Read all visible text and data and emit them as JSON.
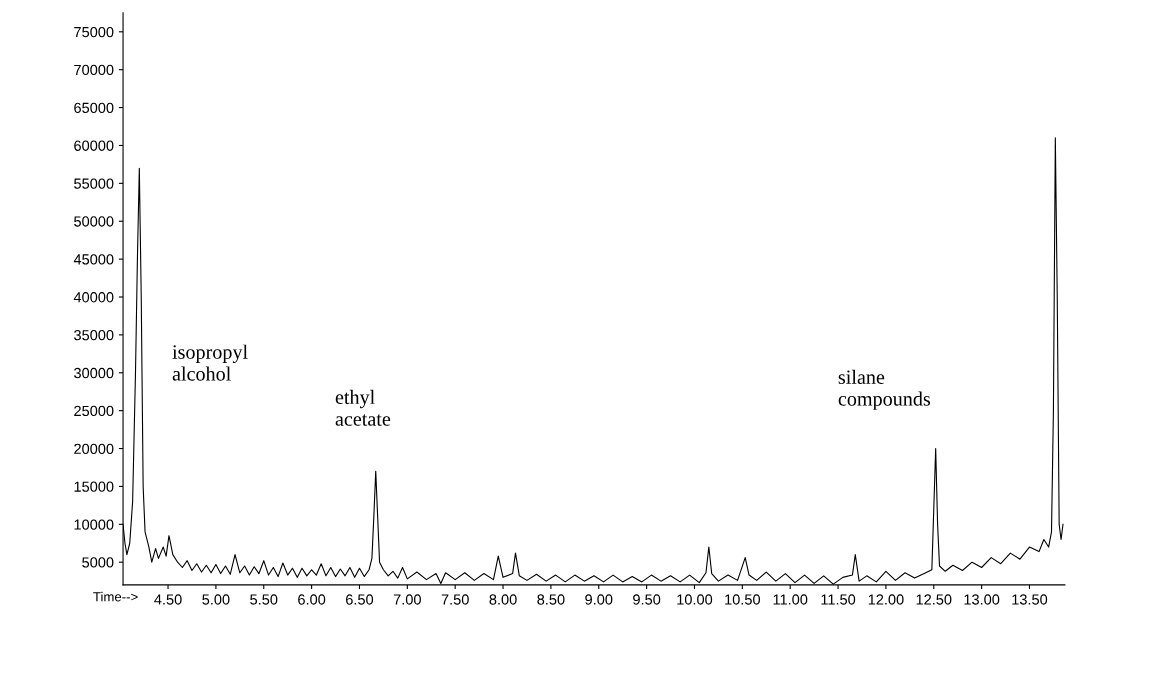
{
  "chart_data": {
    "type": "line",
    "xlabel": "Time-->",
    "xlim": [
      4.03,
      13.87
    ],
    "ylim": [
      2000,
      77500
    ],
    "xticks": [
      {
        "value": 4.5,
        "label": "4.50"
      },
      {
        "value": 5.0,
        "label": "5.00"
      },
      {
        "value": 5.5,
        "label": "5.50"
      },
      {
        "value": 6.0,
        "label": "6.00"
      },
      {
        "value": 6.5,
        "label": "6.50"
      },
      {
        "value": 7.0,
        "label": "7.00"
      },
      {
        "value": 7.5,
        "label": "7.50"
      },
      {
        "value": 8.0,
        "label": "8.00"
      },
      {
        "value": 8.5,
        "label": "8.50"
      },
      {
        "value": 9.0,
        "label": "9.00"
      },
      {
        "value": 9.5,
        "label": "9.50"
      },
      {
        "value": 10.0,
        "label": "10.00"
      },
      {
        "value": 10.5,
        "label": "10.50"
      },
      {
        "value": 11.0,
        "label": "11.00"
      },
      {
        "value": 11.5,
        "label": "11.50"
      },
      {
        "value": 12.0,
        "label": "12.00"
      },
      {
        "value": 12.5,
        "label": "12.50"
      },
      {
        "value": 13.0,
        "label": "13.00"
      },
      {
        "value": 13.5,
        "label": "13.50"
      }
    ],
    "yticks": [
      5000,
      10000,
      15000,
      20000,
      25000,
      30000,
      35000,
      40000,
      45000,
      50000,
      55000,
      60000,
      65000,
      70000,
      75000
    ],
    "grid": false,
    "marker": "none",
    "line_style": "solid",
    "annotations": [
      "isopropyl\nalcohol",
      "ethyl\nacetate",
      "silane\ncompounds"
    ],
    "series": [
      {
        "color": "#000000",
        "x": [
          4.03,
          4.05,
          4.07,
          4.1,
          4.13,
          4.16,
          4.18,
          4.2,
          4.22,
          4.24,
          4.26,
          4.3,
          4.33,
          4.37,
          4.4,
          4.45,
          4.48,
          4.51,
          4.55,
          4.6,
          4.65,
          4.7,
          4.75,
          4.8,
          4.85,
          4.9,
          4.95,
          5.0,
          5.05,
          5.1,
          5.15,
          5.2,
          5.25,
          5.3,
          5.35,
          5.4,
          5.45,
          5.5,
          5.55,
          5.6,
          5.65,
          5.7,
          5.75,
          5.8,
          5.85,
          5.9,
          5.95,
          6.0,
          6.05,
          6.1,
          6.15,
          6.2,
          6.25,
          6.3,
          6.35,
          6.4,
          6.45,
          6.5,
          6.55,
          6.6,
          6.63,
          6.65,
          6.67,
          6.69,
          6.71,
          6.75,
          6.8,
          6.85,
          6.9,
          6.95,
          7.0,
          7.1,
          7.2,
          7.3,
          7.35,
          7.4,
          7.5,
          7.6,
          7.7,
          7.8,
          7.9,
          7.95,
          8.0,
          8.1,
          8.13,
          8.17,
          8.25,
          8.35,
          8.45,
          8.55,
          8.65,
          8.75,
          8.85,
          8.95,
          9.05,
          9.15,
          9.25,
          9.35,
          9.45,
          9.55,
          9.65,
          9.75,
          9.85,
          9.95,
          10.05,
          10.12,
          10.15,
          10.18,
          10.25,
          10.35,
          10.45,
          10.53,
          10.57,
          10.65,
          10.75,
          10.85,
          10.95,
          11.05,
          11.15,
          11.25,
          11.35,
          11.45,
          11.55,
          11.65,
          11.68,
          11.72,
          11.8,
          11.9,
          12.0,
          12.1,
          12.2,
          12.3,
          12.4,
          12.48,
          12.5,
          12.52,
          12.54,
          12.56,
          12.62,
          12.7,
          12.8,
          12.9,
          13.0,
          13.1,
          13.2,
          13.3,
          13.4,
          13.5,
          13.6,
          13.65,
          13.7,
          13.73,
          13.75,
          13.77,
          13.79,
          13.81,
          13.83,
          13.85
        ],
        "values": [
          10000,
          7500,
          6000,
          7500,
          13000,
          30000,
          45000,
          57000,
          40000,
          15000,
          9000,
          7000,
          5000,
          6800,
          5500,
          7000,
          5800,
          8500,
          6000,
          5000,
          4300,
          5200,
          3900,
          4800,
          3700,
          4600,
          3600,
          4700,
          3500,
          4500,
          3400,
          6000,
          3600,
          4500,
          3300,
          4400,
          3500,
          5200,
          3300,
          4300,
          3100,
          4900,
          3300,
          4200,
          3000,
          4200,
          3200,
          4000,
          3300,
          4800,
          3200,
          4300,
          3100,
          4100,
          3200,
          4300,
          3000,
          4200,
          3100,
          4000,
          5500,
          11000,
          17000,
          11000,
          5000,
          4000,
          3200,
          3800,
          2900,
          4300,
          2800,
          3700,
          2700,
          3500,
          2200,
          3600,
          2700,
          3600,
          2600,
          3500,
          2700,
          5800,
          3000,
          3500,
          6200,
          3200,
          2600,
          3400,
          2500,
          3300,
          2400,
          3300,
          2500,
          3200,
          2400,
          3300,
          2400,
          3100,
          2400,
          3300,
          2500,
          3200,
          2400,
          3300,
          2300,
          3600,
          7000,
          3500,
          2500,
          3300,
          2600,
          5600,
          3300,
          2600,
          3700,
          2500,
          3500,
          2300,
          3300,
          2200,
          3200,
          2100,
          3000,
          3300,
          6000,
          2500,
          3200,
          2400,
          3800,
          2600,
          3600,
          2900,
          3500,
          4000,
          12000,
          20000,
          10000,
          4500,
          3800,
          4600,
          3900,
          5000,
          4300,
          5600,
          4800,
          6200,
          5400,
          7000,
          6400,
          8000,
          7000,
          9000,
          25000,
          61000,
          40000,
          10000,
          8000,
          10000
        ]
      }
    ]
  }
}
